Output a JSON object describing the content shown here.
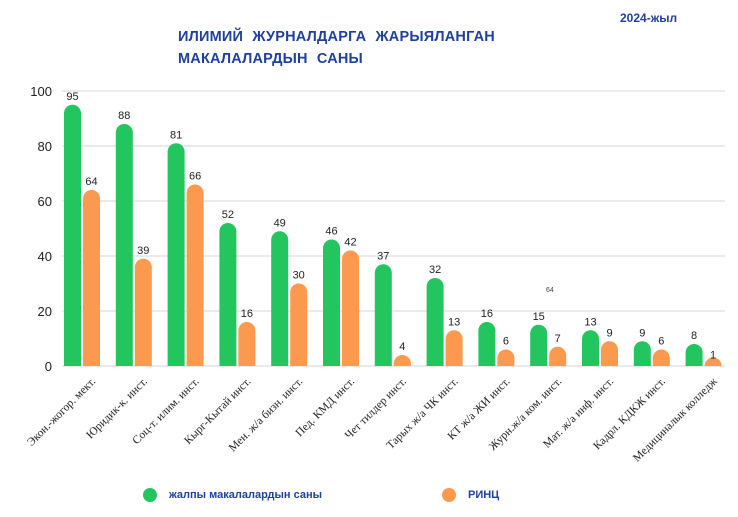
{
  "chart_data": {
    "type": "bar",
    "title": "ИЛИМИЙ  ЖУРНАЛДАРГА ЖАРЫЯЛАНГАН  МАКАЛАЛАРДЫН САНЫ",
    "subtitle": "2024-жыл",
    "xlabel": "",
    "ylabel": "",
    "ylim": [
      0,
      100
    ],
    "yticks": [
      "0",
      "20",
      "40",
      "60",
      "80",
      "100"
    ],
    "grid": true,
    "legend_position": "bottom",
    "categories": [
      "Экон.-жогор. мект.",
      "Юридик-к. инст.",
      "Соц-т. илим. инст.",
      "Кырг-Кытай инст.",
      "Мен. ж/а бизн. инст.",
      "Пед. КМД инст.",
      "Чет тилдер инст.",
      "Тарых ж/а ЧК инст.",
      "КТ ж/а ЖИ инст.",
      "Журн.ж/а ком. инст.",
      "Мат. ж/а инф. инст.",
      "Кадрл. КДКЖ инст.",
      "Медициналык колледж"
    ],
    "series": [
      {
        "name": "жалпы макалалардын саны",
        "color": "#22c55e",
        "values": [
          95,
          88,
          81,
          52,
          49,
          46,
          37,
          32,
          16,
          15,
          13,
          9,
          8
        ]
      },
      {
        "name": "РИНЦ",
        "color": "#fb9a4f",
        "values": [
          64,
          39,
          66,
          16,
          30,
          42,
          4,
          13,
          6,
          7,
          9,
          6,
          1
        ]
      }
    ],
    "annotations": [
      "64"
    ]
  }
}
